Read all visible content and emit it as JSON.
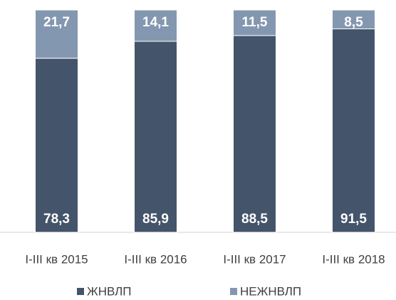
{
  "chart_data": {
    "type": "stacked_bar",
    "categories": [
      "I-III кв 2015",
      "I-III кв 2016",
      "I-III кв 2017",
      "I-III кв 2018"
    ],
    "series": [
      {
        "name": "ЖНВЛП",
        "color": "#44546a",
        "values": [
          78.3,
          85.9,
          88.5,
          91.5
        ],
        "value_labels": [
          "78,3",
          "85,9",
          "88,5",
          "91,5"
        ]
      },
      {
        "name": "НЕЖНВЛП",
        "color": "#8497b0",
        "values": [
          21.7,
          14.1,
          11.5,
          8.5
        ],
        "value_labels": [
          "21,7",
          "14,1",
          "11,5",
          "8,5"
        ]
      }
    ],
    "ylim": [
      0,
      100
    ]
  }
}
